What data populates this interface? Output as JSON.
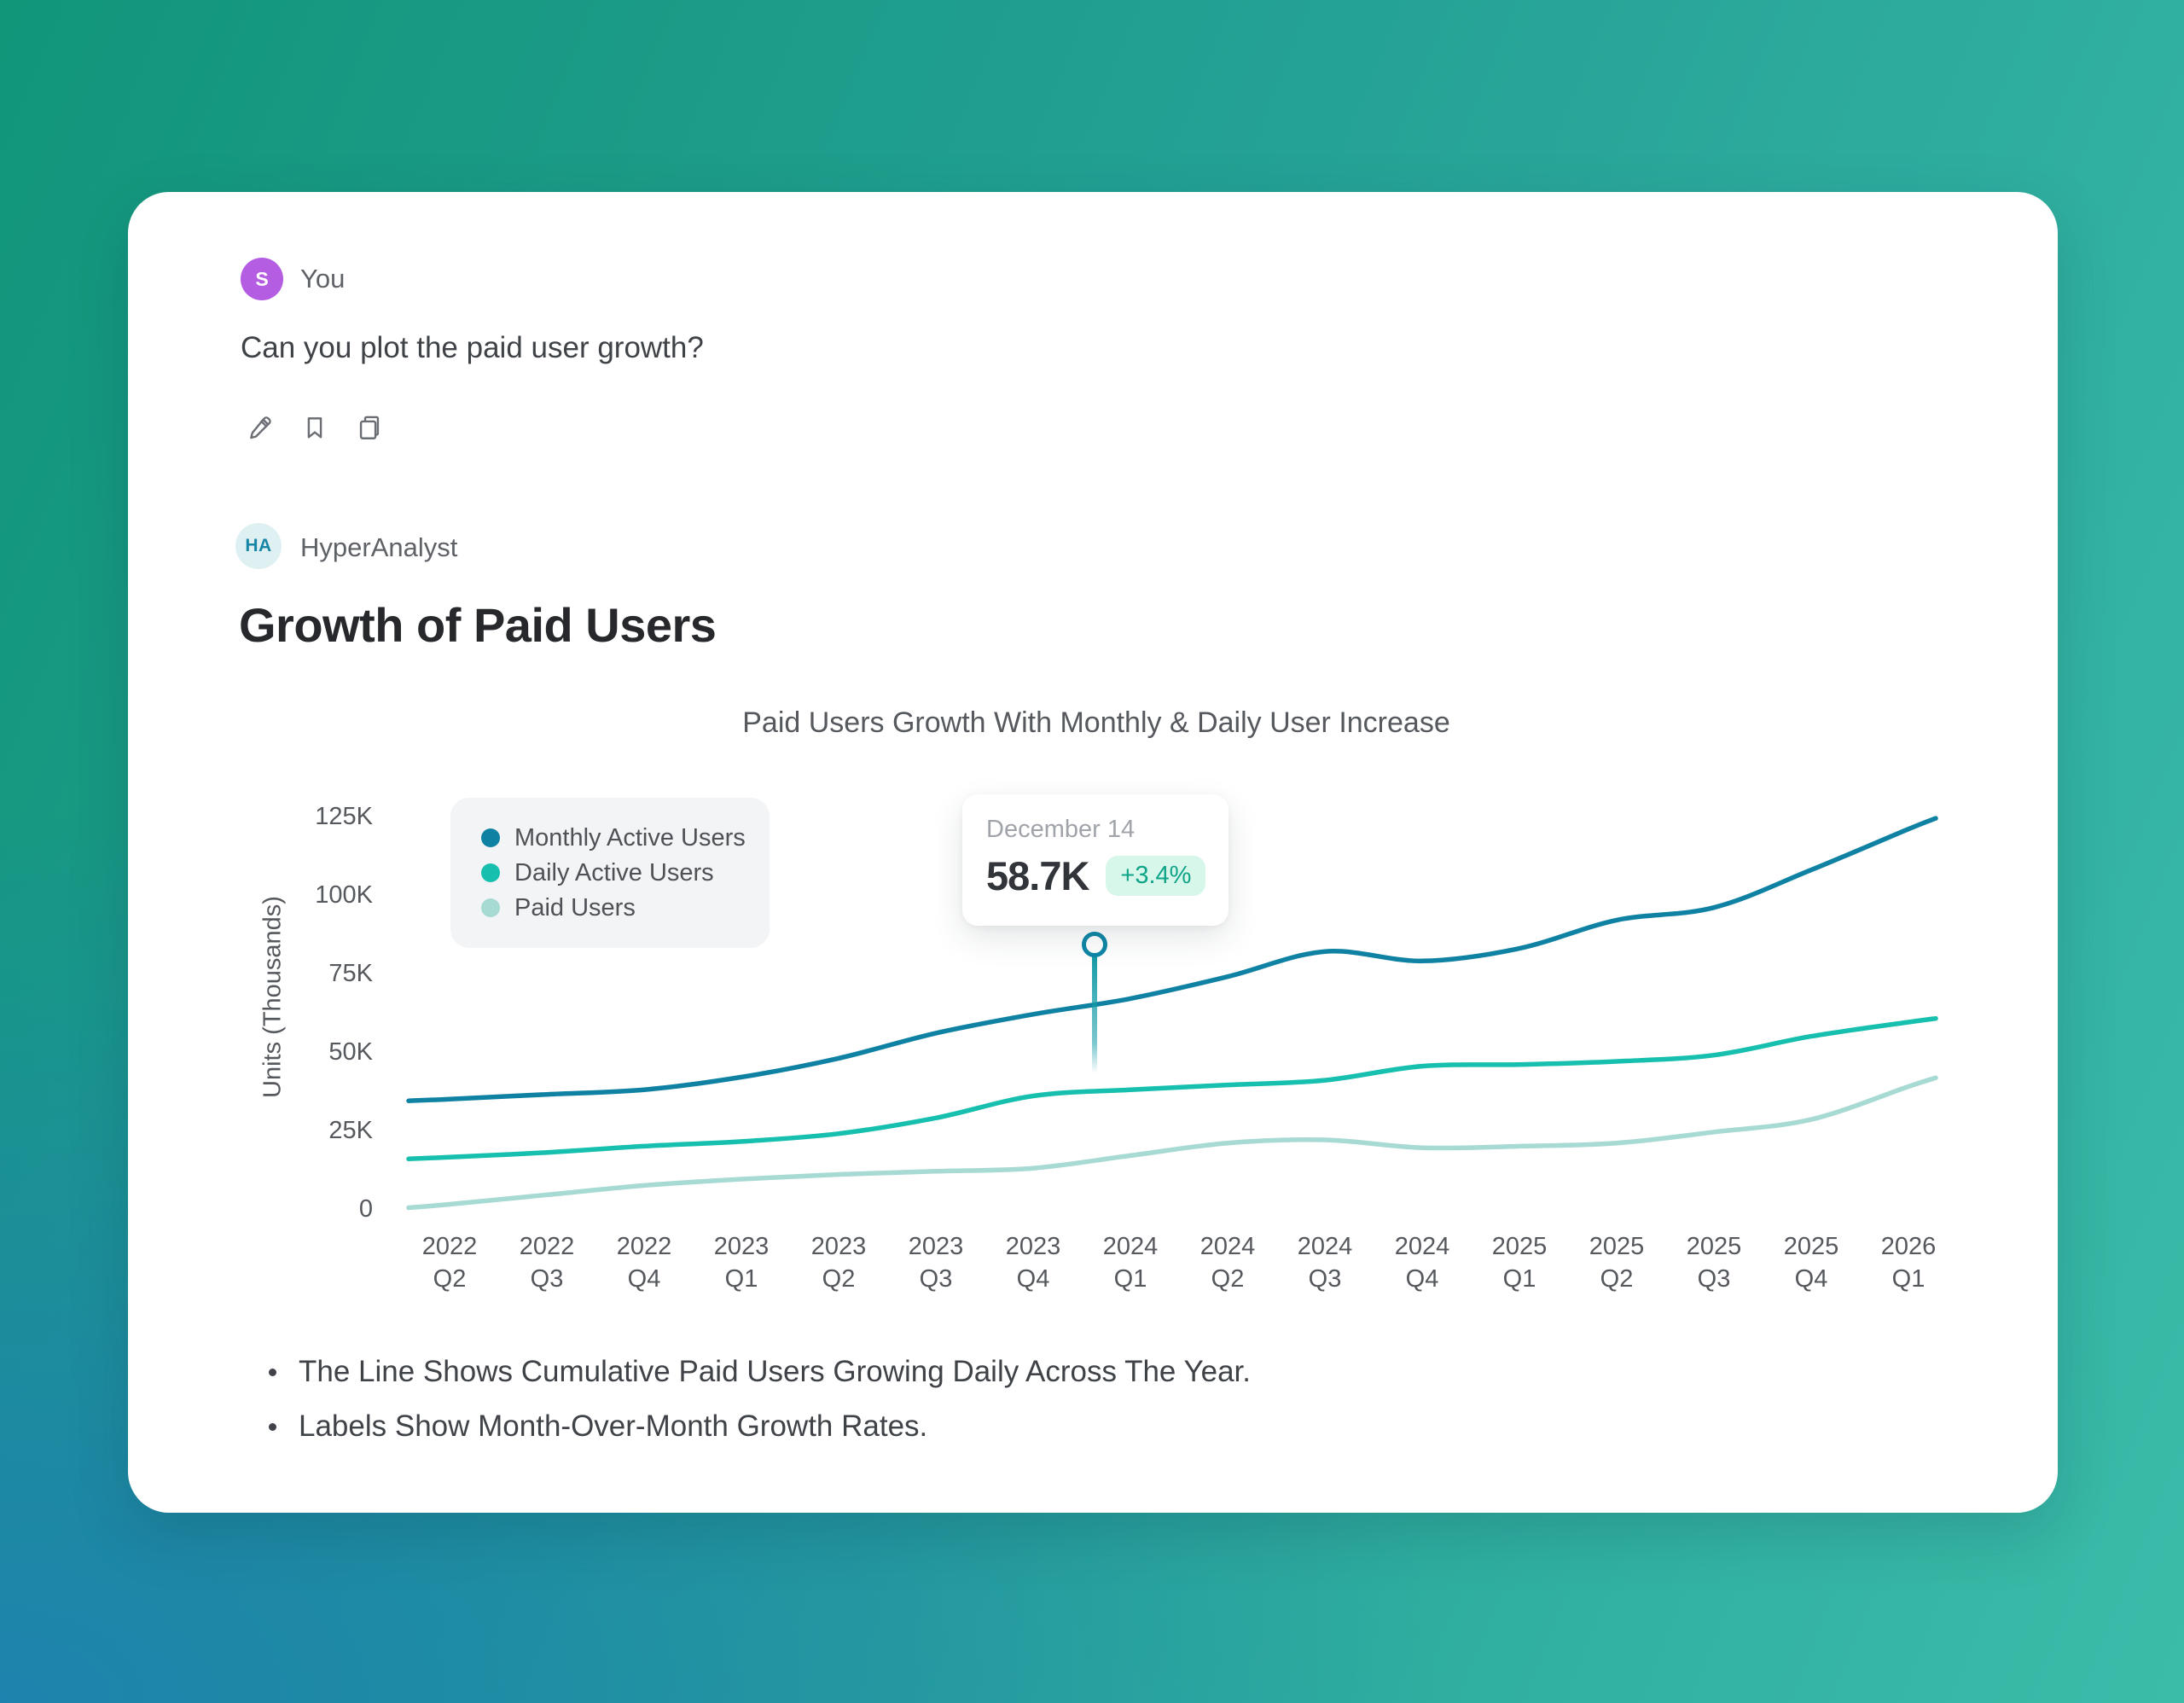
{
  "background": {
    "corner_colors": {
      "top_left": "#13A083",
      "top_right": "#35B3AE",
      "bottom_left": "#2391B3",
      "bottom_right": "#3FC9B5"
    }
  },
  "user_message": {
    "avatar_initial": "S",
    "avatar_color": "#B45CE2",
    "name": "You",
    "text": "Can you plot the paid user growth?",
    "action_icons": [
      "edit-icon",
      "bookmark-icon",
      "copy-icon"
    ]
  },
  "assistant": {
    "avatar_initials": "HA",
    "name": "HyperAnalyst",
    "heading": "Growth of Paid Users"
  },
  "tooltip": {
    "date": "December 14",
    "value": "58.7K",
    "delta": "+3.4%",
    "badge_bg": "#D7F7EA",
    "badge_text_color": "#0FA489"
  },
  "chart_data": {
    "type": "line",
    "title": "Paid Users Growth With Monthly & Daily User Increase",
    "xlabel": "",
    "ylabel": "Units (Thousands)",
    "ylim": [
      0,
      125
    ],
    "grid": false,
    "legend_position": "top-left-inside",
    "categories": [
      "2022 Q2",
      "2022 Q3",
      "2022 Q4",
      "2023 Q1",
      "2023 Q2",
      "2023 Q3",
      "2023 Q4",
      "2024 Q1",
      "2024 Q2",
      "2024 Q3",
      "2024 Q4",
      "2025 Q1",
      "2025 Q2",
      "2025 Q3",
      "2025 Q4",
      "2026 Q1"
    ],
    "y_ticks": [
      {
        "label": "0",
        "value": 0
      },
      {
        "label": "25K",
        "value": 25
      },
      {
        "label": "50K",
        "value": 50
      },
      {
        "label": "75K",
        "value": 75
      },
      {
        "label": "100K",
        "value": 100
      },
      {
        "label": "125K",
        "value": 125
      }
    ],
    "series": [
      {
        "name": "Monthly Active Users",
        "color": "#0F82A4",
        "values": [
          35,
          36.5,
          38,
          42,
          48,
          56,
          62,
          67,
          74,
          82,
          79,
          83,
          92,
          96,
          108,
          121
        ]
      },
      {
        "name": "Daily Active Users",
        "color": "#16BFAE",
        "values": [
          16.5,
          18,
          20,
          21.5,
          24,
          29,
          36,
          38,
          39.5,
          41,
          45.5,
          46,
          47,
          49,
          55,
          59.5
        ]
      },
      {
        "name": "Paid Users",
        "color": "#A7DAD3",
        "values": [
          1.5,
          4.5,
          7.5,
          9.5,
          11,
          12,
          13,
          17,
          21,
          22,
          19.5,
          20,
          21,
          24.5,
          28.5,
          39
        ]
      }
    ],
    "annotation": {
      "x_label": "December 14",
      "value_label": "58.7K",
      "growth_label": "+3.4%",
      "marker_color": "#129AA6"
    }
  },
  "notes": [
    "The Line Shows Cumulative Paid Users Growing Daily Across The Year.",
    "Labels Show Month-Over-Month Growth Rates."
  ]
}
